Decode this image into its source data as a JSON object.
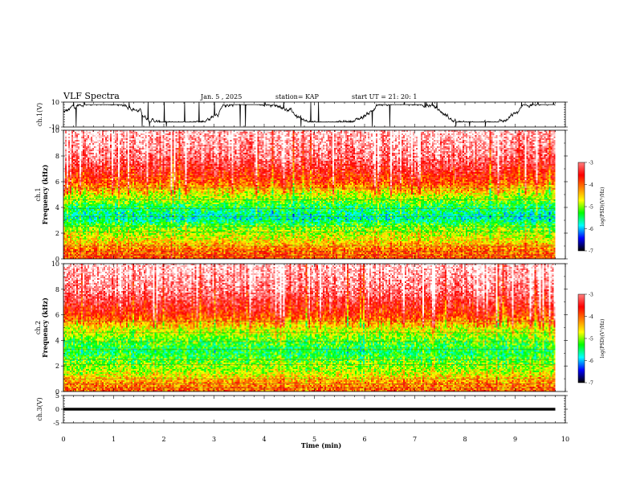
{
  "header": {
    "title": "VLF Spectra",
    "date": "Jan. 5 , 2025",
    "station": "station= KAP",
    "start": "start UT = 21: 20: 1"
  },
  "colorbar": {
    "label": "log(PSD)(V²/Hz)",
    "ticks": [
      "-3",
      "-4",
      "-5",
      "-6",
      "-7"
    ],
    "colors": [
      "#ff8080",
      "#ff0000",
      "#ff8000",
      "#ffff00",
      "#00ff00",
      "#00ffff",
      "#0000ff",
      "#000000"
    ]
  },
  "chart_data": [
    {
      "type": "line",
      "name": "ch.1 waveform",
      "ylabel": "ch.1(V)",
      "ylim": [
        -10,
        10
      ],
      "yticks": [
        "10",
        "-10"
      ],
      "x_range_min": [
        0,
        9.8
      ],
      "description_values": "noisy waveform oscillating mostly between about -4 and 6 V with spikes to +/-10"
    },
    {
      "type": "heatmap",
      "name": "ch.1 spectrogram",
      "ylabel": "ch.1",
      "ylabel2": "Frequency (kHz)",
      "ylim": [
        0,
        10
      ],
      "yticks": [
        "0",
        "2",
        "4",
        "6",
        "8",
        "10"
      ],
      "zlim": [
        -7,
        -3
      ],
      "x_range_min": [
        0,
        9.8
      ],
      "band_profile_khz": [
        {
          "f": 0.0,
          "level": 2.6
        },
        {
          "f": 0.8,
          "level": 2.8
        },
        {
          "f": 1.5,
          "level": 3.4
        },
        {
          "f": 2.5,
          "level": 3.9
        },
        {
          "f": 3.2,
          "level": 4.6
        },
        {
          "f": 4.0,
          "level": 4.3
        },
        {
          "f": 5.0,
          "level": 3.6
        },
        {
          "f": 6.0,
          "level": 2.6
        },
        {
          "f": 8.0,
          "level": 1.6
        },
        {
          "f": 10.0,
          "level": 1.2
        }
      ]
    },
    {
      "type": "heatmap",
      "name": "ch.2 spectrogram",
      "ylabel": "ch.2",
      "ylabel2": "Frequency (kHz)",
      "ylim": [
        0,
        10
      ],
      "yticks": [
        "0",
        "2",
        "4",
        "6",
        "8",
        "10"
      ],
      "zlim": [
        -7,
        -3
      ],
      "x_range_min": [
        0,
        9.8
      ],
      "band_profile_khz": [
        {
          "f": 0.0,
          "level": 2.7
        },
        {
          "f": 0.8,
          "level": 3.0
        },
        {
          "f": 1.5,
          "level": 3.6
        },
        {
          "f": 2.5,
          "level": 4.0
        },
        {
          "f": 3.2,
          "level": 4.3
        },
        {
          "f": 4.0,
          "level": 4.0
        },
        {
          "f": 5.0,
          "level": 3.5
        },
        {
          "f": 6.0,
          "level": 2.5
        },
        {
          "f": 8.0,
          "level": 1.6
        },
        {
          "f": 10.0,
          "level": 1.2
        }
      ]
    },
    {
      "type": "line",
      "name": "ch.3 waveform",
      "ylabel": "ch.3(V)",
      "ylim": [
        -5,
        5
      ],
      "yticks": [
        "5",
        "0",
        "-5"
      ],
      "x_range_min": [
        0,
        9.8
      ],
      "value_band": [
        -0.5,
        0.5
      ]
    }
  ],
  "xaxis": {
    "label": "Time (min)",
    "range": [
      0,
      10
    ],
    "ticks": [
      "0",
      "1",
      "2",
      "3",
      "4",
      "5",
      "6",
      "7",
      "8",
      "9",
      "10"
    ]
  }
}
